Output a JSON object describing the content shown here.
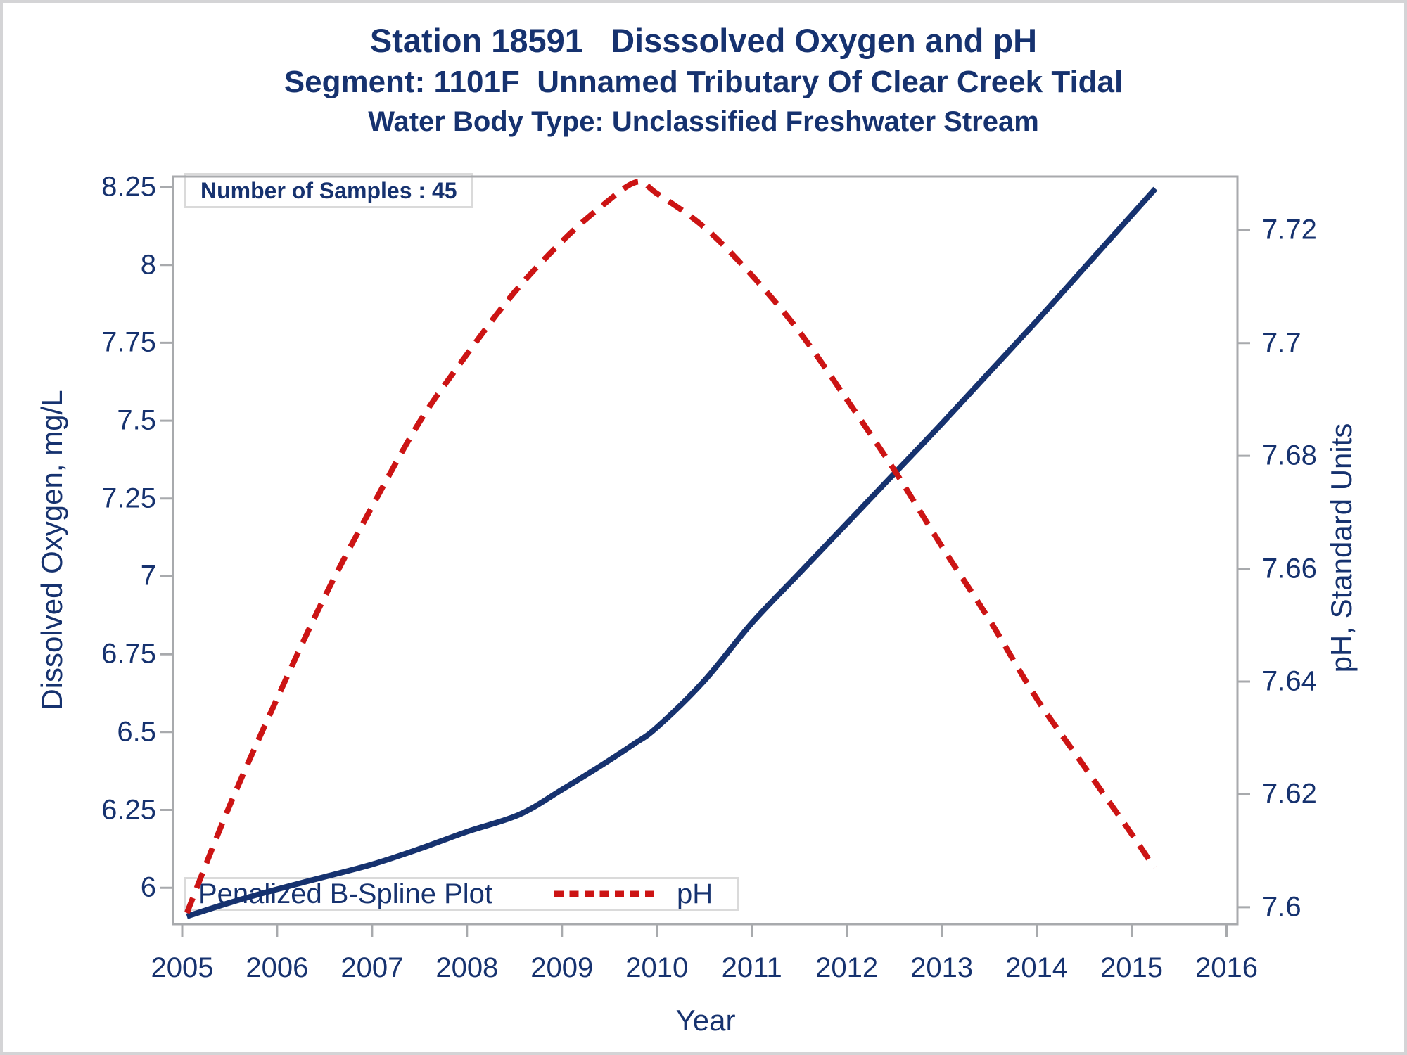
{
  "titles": {
    "line1": "Station 18591   Disssolved Oxygen and pH",
    "line2": "Segment: 1101F  Unnamed Tributary Of Clear Creek Tidal",
    "line3": "Water Body Type: Unclassified Freshwater Stream"
  },
  "annotations": {
    "samples_label": "Number of Samples : 45"
  },
  "legend": {
    "items": [
      {
        "label": "Penalized B-Spline Plot",
        "swatch": "navy-solid-line"
      },
      {
        "label": "pH",
        "swatch": "red-dashed-line"
      }
    ]
  },
  "colors": {
    "navy": "#16326F",
    "red": "#CC1414",
    "frame_gray": "#A8AAAD",
    "box_border_gray": "#DADADA",
    "page_border_gray": "#D4D4D6"
  },
  "chart_data": {
    "type": "line",
    "title": "Station 18591   Disssolved Oxygen and pH",
    "subtitle1": "Segment: 1101F  Unnamed Tributary Of Clear Creek Tidal",
    "subtitle2": "Water Body Type: Unclassified Freshwater Stream",
    "annotation": "Number of Samples : 45",
    "grid": false,
    "legend_position": "inside-bottom-left",
    "x_axis": {
      "label": "Year",
      "range": [
        2004.904,
        2016.115
      ],
      "tick_values": [
        2005,
        2006,
        2007,
        2008,
        2009,
        2010,
        2011,
        2012,
        2013,
        2014,
        2015,
        2016
      ],
      "tick_labels": [
        "2005",
        "2006",
        "2007",
        "2008",
        "2009",
        "2010",
        "2011",
        "2012",
        "2013",
        "2014",
        "2015",
        "2016"
      ]
    },
    "y_left": {
      "label": "Dissolved Oxygen, mg/L",
      "range": [
        5.883,
        8.284
      ],
      "tick_values": [
        6,
        6.25,
        6.5,
        6.75,
        7,
        7.25,
        7.5,
        7.75,
        8,
        8.25
      ],
      "tick_labels": [
        "6",
        "6.25",
        "6.5",
        "6.75",
        "7",
        "7.25",
        "7.5",
        "7.75",
        "8",
        "8.25"
      ]
    },
    "y_right": {
      "label": "pH, Standard Units",
      "range": [
        7.597,
        7.7295
      ],
      "tick_values": [
        7.6,
        7.62,
        7.64,
        7.66,
        7.68,
        7.7,
        7.72
      ],
      "tick_labels": [
        "7.6",
        "7.62",
        "7.64",
        "7.66",
        "7.68",
        "7.7",
        "7.72"
      ]
    },
    "series": [
      {
        "name": "Penalized B-Spline Plot",
        "axis": "left",
        "line_style": "solid",
        "color": "#16326F",
        "points": [
          [
            2005.05,
            5.908
          ],
          [
            2005.5,
            5.952
          ],
          [
            2006,
            5.995
          ],
          [
            2006.5,
            6.035
          ],
          [
            2007,
            6.075
          ],
          [
            2007.5,
            6.125
          ],
          [
            2008,
            6.18
          ],
          [
            2008.55,
            6.235
          ],
          [
            2009,
            6.315
          ],
          [
            2009.4,
            6.39
          ],
          [
            2009.75,
            6.46
          ],
          [
            2010,
            6.515
          ],
          [
            2010.5,
            6.665
          ],
          [
            2011,
            6.85
          ],
          [
            2011.5,
            7.01
          ],
          [
            2012,
            7.17
          ],
          [
            2012.5,
            7.33
          ],
          [
            2013,
            7.49
          ],
          [
            2013.5,
            7.655
          ],
          [
            2014,
            7.82
          ],
          [
            2014.5,
            7.99
          ],
          [
            2015,
            8.16
          ],
          [
            2015.25,
            8.245
          ]
        ]
      },
      {
        "name": "pH",
        "axis": "right",
        "line_style": "dashed",
        "color": "#CC1414",
        "points": [
          [
            2005.05,
            7.599
          ],
          [
            2005.5,
            7.618
          ],
          [
            2006,
            7.637
          ],
          [
            2006.5,
            7.655
          ],
          [
            2007,
            7.671
          ],
          [
            2007.5,
            7.686
          ],
          [
            2008,
            7.698
          ],
          [
            2008.5,
            7.709
          ],
          [
            2009,
            7.718
          ],
          [
            2009.4,
            7.724
          ],
          [
            2009.78,
            7.7285
          ],
          [
            2010,
            7.7265
          ],
          [
            2010.5,
            7.7205
          ],
          [
            2011,
            7.712
          ],
          [
            2011.5,
            7.702
          ],
          [
            2012,
            7.69
          ],
          [
            2012.5,
            7.6775
          ],
          [
            2013,
            7.664
          ],
          [
            2013.5,
            7.651
          ],
          [
            2014,
            7.637
          ],
          [
            2014.5,
            7.625
          ],
          [
            2015,
            7.613
          ],
          [
            2015.24,
            7.607
          ]
        ]
      }
    ]
  }
}
